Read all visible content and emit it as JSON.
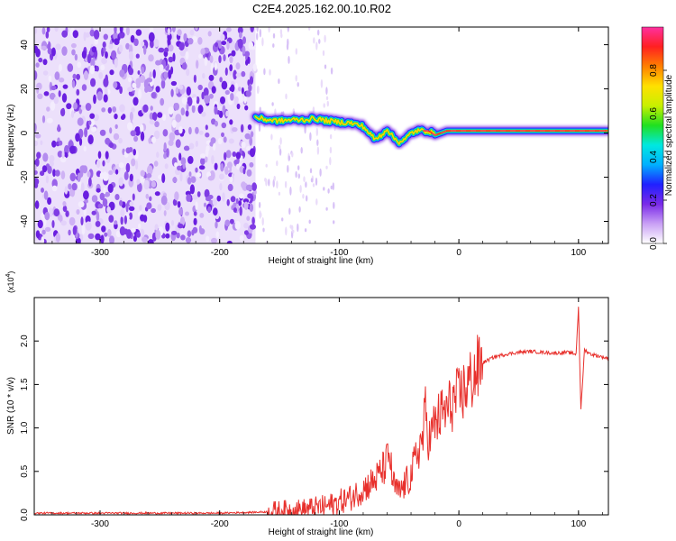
{
  "title": "C2E4.2025.162.00.10.R02",
  "chart_data": [
    {
      "type": "heatmap",
      "xlabel": "Height of straight line (km)",
      "ylabel": "Frequency (Hz)",
      "xlim": [
        -355,
        125
      ],
      "ylim": [
        -50,
        48
      ],
      "x_ticks": [
        -300,
        -200,
        -100,
        0,
        100
      ],
      "x_tick_labels": [
        "-300",
        "-200",
        "-100",
        "0",
        "100"
      ],
      "y_ticks": [
        -40,
        -20,
        0,
        20,
        40
      ],
      "y_tick_labels": [
        "-40",
        "-20",
        "0",
        "20",
        "40"
      ],
      "colorbar": {
        "label": "Normalized spectral amplitude",
        "range": [
          0,
          1
        ],
        "ticks": [
          0.0,
          0.2,
          0.4,
          0.6,
          0.8
        ],
        "tick_labels": [
          "0.0",
          "0.2",
          "0.4",
          "0.6",
          "0.8"
        ],
        "colormap": [
          "#ffffff",
          "#c9a0f5",
          "#7a2ae8",
          "#2020ff",
          "#00b0ff",
          "#00e8e0",
          "#20e020",
          "#c8f000",
          "#ffe000",
          "#ff8000",
          "#ff2020",
          "#ff30a0"
        ]
      },
      "noise_region_x": [
        -355,
        -170
      ],
      "trace": {
        "x": [
          -170,
          -160,
          -150,
          -140,
          -130,
          -120,
          -110,
          -100,
          -90,
          -80,
          -75,
          -70,
          -65,
          -60,
          -55,
          -50,
          -45,
          -40,
          -35,
          -30,
          -25,
          -20,
          -15,
          -10,
          -5,
          0,
          20,
          50,
          80,
          100,
          125
        ],
        "y": [
          7,
          6,
          5.5,
          6,
          6,
          6.5,
          5.5,
          5,
          4.5,
          3,
          0,
          -3,
          -1,
          2,
          -2,
          -4,
          -3,
          0,
          1,
          1,
          1,
          -1,
          0,
          1,
          1,
          1,
          1,
          1,
          1,
          1,
          1
        ]
      },
      "grid": false
    },
    {
      "type": "line",
      "xlabel": "Height of straight line (km)",
      "ylabel": "SNR (10 * v/v)",
      "y_multiplier_label": "(x10",
      "y_multiplier_exp": "4",
      "xlim": [
        -355,
        125
      ],
      "ylim": [
        0,
        2.5
      ],
      "x_ticks": [
        -300,
        -200,
        -100,
        0,
        100
      ],
      "x_tick_labels": [
        "-300",
        "-200",
        "-100",
        "0",
        "100"
      ],
      "y_ticks": [
        0.0,
        0.5,
        1.0,
        1.5,
        2.0
      ],
      "y_tick_labels": [
        "0.0",
        "0.5",
        "1.0",
        "1.5",
        "2.0"
      ],
      "line_color": "#e8302c",
      "series": [
        {
          "x": [
            -355,
            -300,
            -250,
            -200,
            -170,
            -150,
            -130,
            -110,
            -100,
            -90,
            -80,
            -70,
            -62,
            -58,
            -55,
            -50,
            -45,
            -40,
            -35,
            -30,
            -28,
            -25,
            -20,
            -15,
            -10,
            -5,
            0,
            5,
            10,
            15,
            20,
            30,
            40,
            50,
            60,
            70,
            80,
            90,
            98,
            100,
            102,
            105,
            110,
            125
          ],
          "y": [
            0.02,
            0.02,
            0.02,
            0.02,
            0.03,
            0.04,
            0.06,
            0.1,
            0.15,
            0.2,
            0.3,
            0.4,
            0.55,
            0.7,
            0.35,
            0.25,
            0.35,
            0.45,
            0.7,
            0.9,
            1.2,
            0.85,
            1.05,
            1.15,
            1.2,
            1.3,
            1.35,
            1.45,
            1.55,
            1.65,
            1.75,
            1.82,
            1.85,
            1.87,
            1.88,
            1.87,
            1.86,
            1.87,
            1.85,
            2.4,
            1.2,
            1.9,
            1.85,
            1.8
          ]
        }
      ],
      "grid": false
    }
  ]
}
